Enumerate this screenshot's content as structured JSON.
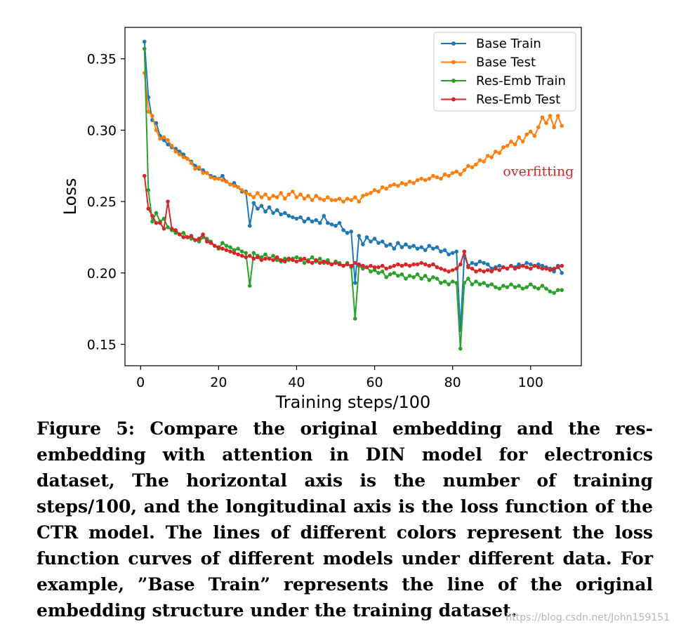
{
  "chart_data": {
    "type": "line",
    "xlabel": "Training steps/100",
    "ylabel": "Loss",
    "xlim": [
      -4,
      113
    ],
    "ylim": [
      0.135,
      0.372
    ],
    "xticks": [
      0,
      20,
      40,
      60,
      80,
      100
    ],
    "yticks": [
      0.15,
      0.2,
      0.25,
      0.3,
      0.35
    ],
    "grid": false,
    "legend_position": "top-right",
    "annotation": {
      "text": "overfitting",
      "x": 102,
      "y": 0.268,
      "color": "#d62728"
    },
    "series": [
      {
        "name": "Base Train",
        "color": "#1f77b4",
        "values": [
          0.362,
          0.323,
          0.307,
          0.305,
          0.296,
          0.293,
          0.29,
          0.288,
          0.287,
          0.285,
          0.283,
          0.28,
          0.278,
          0.275,
          0.273,
          0.272,
          0.27,
          0.268,
          0.267,
          0.266,
          0.268,
          0.264,
          0.262,
          0.263,
          0.26,
          0.257,
          0.257,
          0.233,
          0.249,
          0.245,
          0.247,
          0.243,
          0.246,
          0.242,
          0.244,
          0.241,
          0.242,
          0.24,
          0.239,
          0.238,
          0.239,
          0.236,
          0.238,
          0.236,
          0.237,
          0.235,
          0.24,
          0.235,
          0.234,
          0.233,
          0.235,
          0.23,
          0.228,
          0.229,
          0.193,
          0.226,
          0.22,
          0.225,
          0.222,
          0.224,
          0.221,
          0.222,
          0.219,
          0.22,
          0.217,
          0.221,
          0.218,
          0.22,
          0.218,
          0.219,
          0.217,
          0.218,
          0.216,
          0.219,
          0.217,
          0.218,
          0.215,
          0.216,
          0.213,
          0.214,
          0.215,
          0.16,
          0.212,
          0.205,
          0.207,
          0.206,
          0.208,
          0.207,
          0.206,
          0.203,
          0.204,
          0.205,
          0.204,
          0.203,
          0.205,
          0.204,
          0.206,
          0.205,
          0.207,
          0.206,
          0.205,
          0.206,
          0.205,
          0.204,
          0.203,
          0.201,
          0.205,
          0.2
        ]
      },
      {
        "name": "Base Test",
        "color": "#ff7f0e",
        "values": [
          0.34,
          0.313,
          0.31,
          0.3,
          0.294,
          0.295,
          0.293,
          0.289,
          0.285,
          0.283,
          0.281,
          0.28,
          0.277,
          0.273,
          0.274,
          0.27,
          0.27,
          0.267,
          0.266,
          0.266,
          0.265,
          0.264,
          0.262,
          0.261,
          0.26,
          0.258,
          0.256,
          0.255,
          0.253,
          0.256,
          0.253,
          0.255,
          0.252,
          0.254,
          0.253,
          0.256,
          0.252,
          0.255,
          0.257,
          0.253,
          0.255,
          0.252,
          0.254,
          0.251,
          0.254,
          0.252,
          0.251,
          0.253,
          0.251,
          0.251,
          0.252,
          0.25,
          0.252,
          0.251,
          0.253,
          0.25,
          0.254,
          0.255,
          0.256,
          0.258,
          0.257,
          0.26,
          0.259,
          0.261,
          0.262,
          0.261,
          0.263,
          0.262,
          0.264,
          0.263,
          0.265,
          0.266,
          0.265,
          0.266,
          0.268,
          0.267,
          0.266,
          0.269,
          0.268,
          0.27,
          0.271,
          0.269,
          0.272,
          0.275,
          0.274,
          0.276,
          0.279,
          0.278,
          0.282,
          0.281,
          0.285,
          0.284,
          0.288,
          0.289,
          0.292,
          0.29,
          0.295,
          0.292,
          0.297,
          0.299,
          0.296,
          0.302,
          0.309,
          0.305,
          0.31,
          0.302,
          0.31,
          0.303
        ]
      },
      {
        "name": "Res-Emb Train",
        "color": "#2ca02c",
        "values": [
          0.357,
          0.258,
          0.236,
          0.242,
          0.236,
          0.238,
          0.232,
          0.23,
          0.228,
          0.227,
          0.228,
          0.225,
          0.224,
          0.223,
          0.222,
          0.225,
          0.224,
          0.222,
          0.219,
          0.217,
          0.221,
          0.219,
          0.218,
          0.216,
          0.217,
          0.215,
          0.214,
          0.191,
          0.214,
          0.212,
          0.211,
          0.213,
          0.21,
          0.212,
          0.209,
          0.208,
          0.21,
          0.209,
          0.21,
          0.211,
          0.21,
          0.207,
          0.209,
          0.211,
          0.208,
          0.21,
          0.207,
          0.209,
          0.206,
          0.208,
          0.207,
          0.205,
          0.207,
          0.204,
          0.168,
          0.205,
          0.203,
          0.204,
          0.201,
          0.202,
          0.2,
          0.201,
          0.197,
          0.199,
          0.2,
          0.198,
          0.199,
          0.196,
          0.198,
          0.197,
          0.199,
          0.196,
          0.198,
          0.195,
          0.197,
          0.196,
          0.193,
          0.194,
          0.192,
          0.194,
          0.193,
          0.147,
          0.193,
          0.196,
          0.192,
          0.194,
          0.192,
          0.193,
          0.191,
          0.192,
          0.19,
          0.189,
          0.191,
          0.19,
          0.192,
          0.19,
          0.191,
          0.189,
          0.19,
          0.192,
          0.19,
          0.189,
          0.191,
          0.189,
          0.187,
          0.186,
          0.188,
          0.188
        ]
      },
      {
        "name": "Res-Emb Test",
        "color": "#d62728",
        "values": [
          0.268,
          0.245,
          0.24,
          0.235,
          0.235,
          0.231,
          0.25,
          0.231,
          0.23,
          0.227,
          0.225,
          0.225,
          0.226,
          0.223,
          0.224,
          0.227,
          0.222,
          0.221,
          0.219,
          0.218,
          0.217,
          0.216,
          0.215,
          0.214,
          0.213,
          0.212,
          0.211,
          0.212,
          0.21,
          0.211,
          0.209,
          0.21,
          0.21,
          0.209,
          0.211,
          0.209,
          0.208,
          0.21,
          0.209,
          0.208,
          0.209,
          0.21,
          0.208,
          0.207,
          0.209,
          0.207,
          0.208,
          0.207,
          0.206,
          0.207,
          0.206,
          0.205,
          0.206,
          0.205,
          0.207,
          0.206,
          0.205,
          0.204,
          0.205,
          0.204,
          0.204,
          0.205,
          0.203,
          0.204,
          0.205,
          0.206,
          0.205,
          0.206,
          0.205,
          0.206,
          0.206,
          0.207,
          0.206,
          0.205,
          0.206,
          0.204,
          0.203,
          0.202,
          0.201,
          0.202,
          0.203,
          0.206,
          0.215,
          0.204,
          0.203,
          0.201,
          0.202,
          0.201,
          0.202,
          0.201,
          0.203,
          0.202,
          0.204,
          0.203,
          0.205,
          0.203,
          0.204,
          0.205,
          0.204,
          0.203,
          0.205,
          0.204,
          0.203,
          0.203,
          0.202,
          0.203,
          0.204,
          0.205
        ]
      }
    ]
  },
  "caption": "Figure 5: Compare the original embedding and the res-embedding with attention in DIN model for electronics dataset, The horizontal axis is the number of training steps/100, and the longitudinal axis is the loss function of the CTR model. The lines of different colors represent the loss function curves of different models under different data. For example, ”Base Train” represents the line of the original embedding structure under the training dataset.",
  "watermark": "https://blog.csdn.net/John159151"
}
